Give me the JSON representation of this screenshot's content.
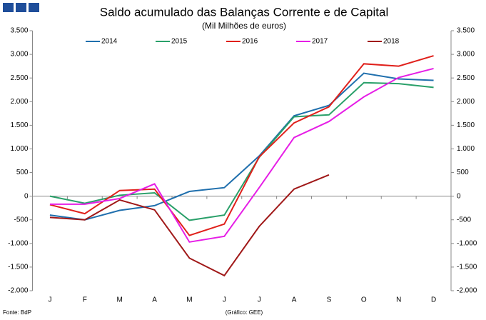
{
  "chart_data": {
    "type": "line",
    "title": "Saldo acumulado das Balanças Corrente e de Capital",
    "subtitle": "(Mil Milhões de euros)",
    "source": "Fonte: BdP",
    "credit": "(Gráfico: GEE)",
    "categories": [
      "J",
      "F",
      "M",
      "A",
      "M",
      "J",
      "J",
      "A",
      "S",
      "O",
      "N",
      "D"
    ],
    "series": [
      {
        "name": "2014",
        "color": "#1f6fad",
        "values": [
          -400,
          -500,
          -300,
          -200,
          100,
          180,
          850,
          1700,
          1920,
          2600,
          2480,
          2450
        ]
      },
      {
        "name": "2015",
        "color": "#2aa06a",
        "values": [
          0,
          -150,
          20,
          70,
          -510,
          -400,
          820,
          1680,
          1720,
          2400,
          2380,
          2300
        ]
      },
      {
        "name": "2016",
        "color": "#e0201b",
        "values": [
          -180,
          -370,
          120,
          150,
          -830,
          -590,
          830,
          1550,
          1890,
          2800,
          2750,
          2970
        ]
      },
      {
        "name": "2017",
        "color": "#e61ee6",
        "values": [
          -170,
          -170,
          -50,
          260,
          -970,
          -850,
          180,
          1240,
          1580,
          2100,
          2510,
          2700
        ]
      },
      {
        "name": "2018",
        "color": "#a01818",
        "values": [
          -450,
          -500,
          -80,
          -290,
          -1310,
          -1680,
          -640,
          150,
          450,
          null,
          null,
          null
        ]
      }
    ],
    "ylim": [
      -2000,
      3500
    ],
    "yticks": [
      {
        "value": -2000,
        "label": "-2.000"
      },
      {
        "value": -1500,
        "label": "-1.500"
      },
      {
        "value": -1000,
        "label": "-1.000"
      },
      -500,
      0,
      500,
      {
        "value": 1000,
        "label": "1.000"
      },
      {
        "value": 1500,
        "label": "1.500"
      },
      {
        "value": 2000,
        "label": "2.000"
      },
      {
        "value": 2500,
        "label": "2.500"
      },
      {
        "value": 3000,
        "label": "3.000"
      },
      {
        "value": 3500,
        "label": "3.500"
      }
    ],
    "grid": false
  }
}
